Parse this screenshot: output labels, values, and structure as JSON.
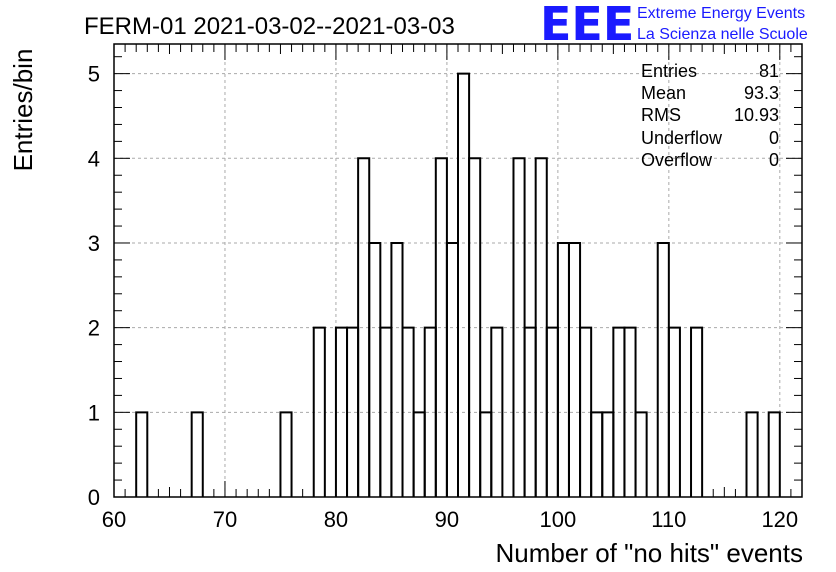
{
  "chart_data": {
    "type": "histogram",
    "title": "FERM-01 2021-03-02--2021-03-03",
    "xlabel": "Number of \"no hits\" events",
    "ylabel": "Entries/bin",
    "xlim": [
      60,
      122
    ],
    "ylim": [
      0,
      5.35
    ],
    "x_ticks": [
      60,
      70,
      80,
      90,
      100,
      110,
      120
    ],
    "y_ticks": [
      0,
      1,
      2,
      3,
      4,
      5
    ],
    "grid": true,
    "bin_width": 1,
    "bins": [
      {
        "x": 62,
        "y": 1
      },
      {
        "x": 67,
        "y": 1
      },
      {
        "x": 75,
        "y": 1
      },
      {
        "x": 78,
        "y": 2
      },
      {
        "x": 80,
        "y": 2
      },
      {
        "x": 81,
        "y": 2
      },
      {
        "x": 82,
        "y": 4
      },
      {
        "x": 83,
        "y": 3
      },
      {
        "x": 84,
        "y": 2
      },
      {
        "x": 85,
        "y": 3
      },
      {
        "x": 86,
        "y": 2
      },
      {
        "x": 87,
        "y": 1
      },
      {
        "x": 88,
        "y": 2
      },
      {
        "x": 89,
        "y": 4
      },
      {
        "x": 90,
        "y": 3
      },
      {
        "x": 91,
        "y": 5
      },
      {
        "x": 92,
        "y": 4
      },
      {
        "x": 93,
        "y": 1
      },
      {
        "x": 94,
        "y": 2
      },
      {
        "x": 96,
        "y": 4
      },
      {
        "x": 97,
        "y": 2
      },
      {
        "x": 98,
        "y": 4
      },
      {
        "x": 99,
        "y": 2
      },
      {
        "x": 100,
        "y": 3
      },
      {
        "x": 101,
        "y": 3
      },
      {
        "x": 102,
        "y": 2
      },
      {
        "x": 103,
        "y": 1
      },
      {
        "x": 104,
        "y": 1
      },
      {
        "x": 105,
        "y": 2
      },
      {
        "x": 106,
        "y": 2
      },
      {
        "x": 107,
        "y": 1
      },
      {
        "x": 109,
        "y": 3
      },
      {
        "x": 110,
        "y": 2
      },
      {
        "x": 112,
        "y": 2
      },
      {
        "x": 117,
        "y": 1
      },
      {
        "x": 119,
        "y": 1
      }
    ],
    "stats": [
      {
        "label": "Entries",
        "value": "81"
      },
      {
        "label": "Mean",
        "value": "93.3"
      },
      {
        "label": "RMS",
        "value": "10.93"
      },
      {
        "label": "Underflow",
        "value": "0"
      },
      {
        "label": "Overflow",
        "value": "0"
      }
    ]
  },
  "logo": {
    "mark": "EEE",
    "line1": "Extreme Energy Events",
    "line2": "La Scienza nelle Scuole"
  }
}
